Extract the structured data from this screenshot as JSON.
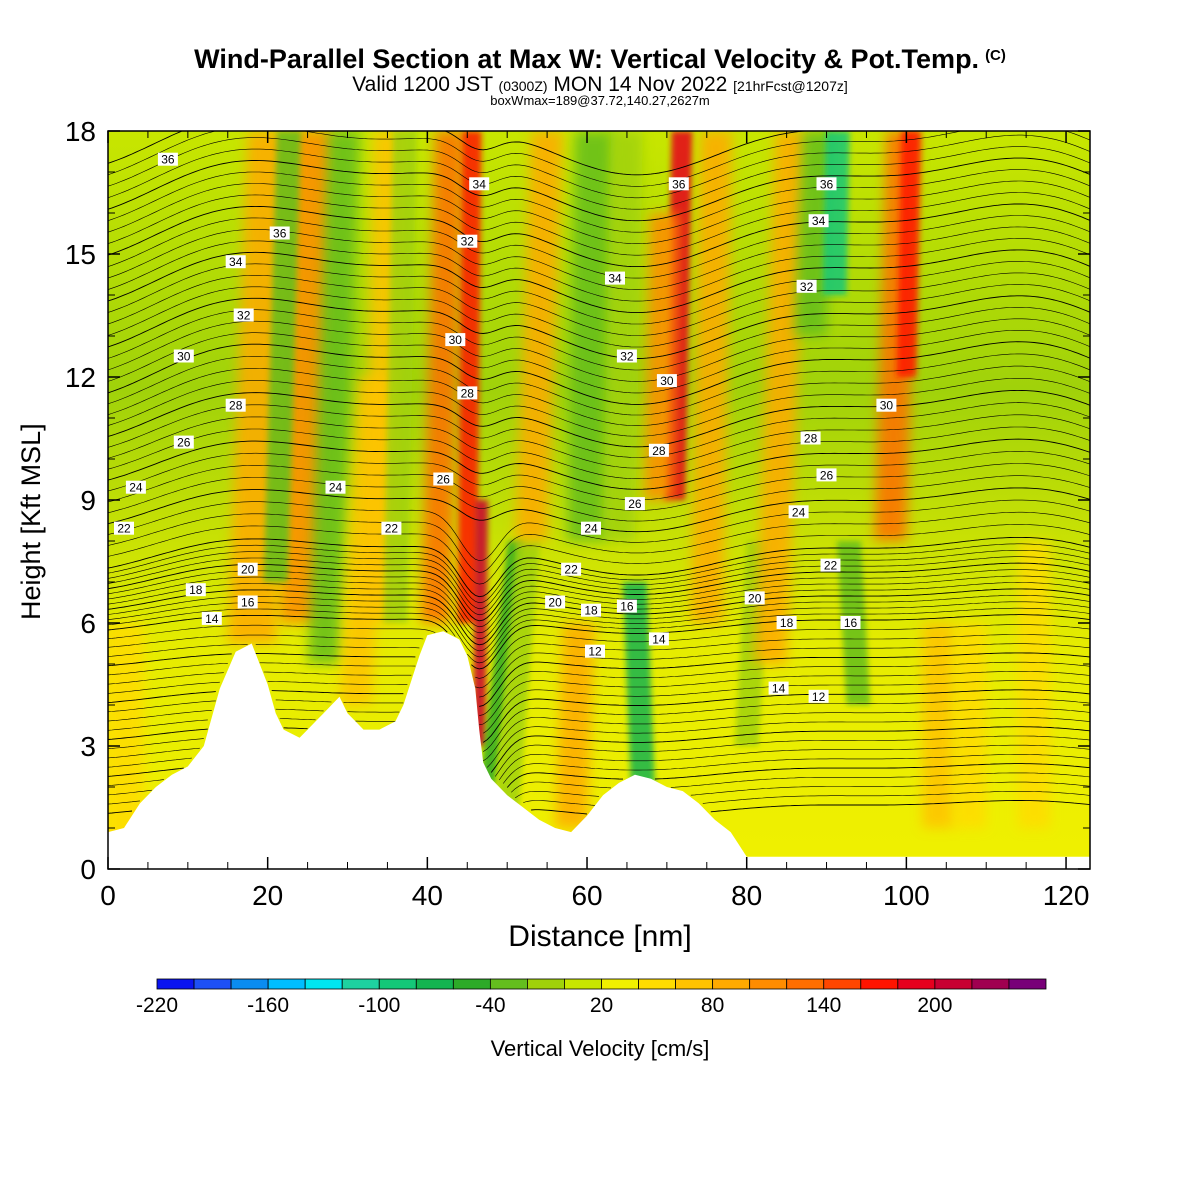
{
  "header": {
    "title": "Wind-Parallel Section at Max W: Vertical Velocity & Pot.Temp.",
    "title_tag": "(C)",
    "valid_prefix": "Valid 1200 JST",
    "valid_utc": "(0300Z)",
    "valid_date": "MON 14 Nov 2022",
    "forecast_info": "[21hrFcst@1207z]",
    "box_info": "boxWmax=189@37.72,140.27,2627m"
  },
  "chart_data": {
    "type": "heatmap",
    "title": "Wind-Parallel Section at Max W: Vertical Velocity & Pot.Temp.",
    "xlabel": "Distance [nm]",
    "ylabel": "Height [Kft MSL]",
    "xlim": [
      0,
      123
    ],
    "ylim": [
      0,
      18
    ],
    "x_ticks": [
      "0",
      "20",
      "40",
      "60",
      "80",
      "100",
      "120"
    ],
    "y_ticks": [
      "0",
      "3",
      "6",
      "9",
      "12",
      "15",
      "18"
    ],
    "colorbar": {
      "label": "Vertical Velocity [cm/s]",
      "ticks": [
        "-220",
        "-160",
        "-100",
        "-40",
        "20",
        "80",
        "140",
        "200"
      ],
      "levels": [
        -220,
        -200,
        -180,
        -160,
        -140,
        -120,
        -100,
        -80,
        -60,
        -40,
        -20,
        0,
        20,
        40,
        60,
        80,
        100,
        120,
        140,
        160,
        180,
        200,
        220,
        240
      ],
      "colors": [
        "#0a14f0",
        "#1e50f5",
        "#0a8cf0",
        "#00beff",
        "#00e6f0",
        "#1ed2a0",
        "#14c878",
        "#14b450",
        "#2daa28",
        "#64be1e",
        "#a0d20a",
        "#c8e600",
        "#f0f000",
        "#ffdc00",
        "#ffc300",
        "#ffaa00",
        "#ff8c00",
        "#ff6e00",
        "#ff4600",
        "#ff1400",
        "#e6001e",
        "#c80032",
        "#a00050",
        "#780078",
        "#500096"
      ]
    },
    "terrain_kft": [
      [
        0,
        0.9
      ],
      [
        2,
        1.0
      ],
      [
        4,
        1.6
      ],
      [
        6,
        2.0
      ],
      [
        8,
        2.3
      ],
      [
        10,
        2.5
      ],
      [
        12,
        3.0
      ],
      [
        14,
        4.4
      ],
      [
        16,
        5.3
      ],
      [
        18,
        5.5
      ],
      [
        19,
        5.0
      ],
      [
        20,
        4.5
      ],
      [
        21,
        3.8
      ],
      [
        22,
        3.4
      ],
      [
        24,
        3.2
      ],
      [
        25,
        3.4
      ],
      [
        26,
        3.6
      ],
      [
        27,
        3.8
      ],
      [
        28,
        4.0
      ],
      [
        29,
        4.2
      ],
      [
        30,
        3.8
      ],
      [
        31,
        3.6
      ],
      [
        32,
        3.4
      ],
      [
        34,
        3.4
      ],
      [
        36,
        3.6
      ],
      [
        37,
        4.0
      ],
      [
        38,
        4.6
      ],
      [
        39,
        5.2
      ],
      [
        40,
        5.7
      ],
      [
        42,
        5.8
      ],
      [
        44,
        5.6
      ],
      [
        45,
        5.2
      ],
      [
        46,
        4.4
      ],
      [
        46.5,
        3.4
      ],
      [
        47,
        2.6
      ],
      [
        48,
        2.2
      ],
      [
        50,
        1.8
      ],
      [
        52,
        1.5
      ],
      [
        54,
        1.2
      ],
      [
        56,
        1.0
      ],
      [
        58,
        0.9
      ],
      [
        60,
        1.3
      ],
      [
        62,
        1.8
      ],
      [
        64,
        2.1
      ],
      [
        66,
        2.3
      ],
      [
        68,
        2.2
      ],
      [
        70,
        2.0
      ],
      [
        72,
        1.9
      ],
      [
        74,
        1.6
      ],
      [
        76,
        1.2
      ],
      [
        78,
        0.9
      ],
      [
        79,
        0.6
      ],
      [
        80,
        0.3
      ],
      [
        90,
        0.3
      ],
      [
        100,
        0.3
      ],
      [
        110,
        0.3
      ],
      [
        123,
        0.3
      ]
    ],
    "contour_labels": [
      {
        "x": 7.5,
        "y": 17.3,
        "text": "36"
      },
      {
        "x": 21.5,
        "y": 15.5,
        "text": "36"
      },
      {
        "x": 46.5,
        "y": 16.7,
        "text": "34"
      },
      {
        "x": 71.5,
        "y": 16.7,
        "text": "36"
      },
      {
        "x": 90,
        "y": 16.7,
        "text": "36"
      },
      {
        "x": 89,
        "y": 15.8,
        "text": "34"
      },
      {
        "x": 16,
        "y": 14.8,
        "text": "34"
      },
      {
        "x": 45,
        "y": 15.3,
        "text": "32"
      },
      {
        "x": 63.5,
        "y": 14.4,
        "text": "34"
      },
      {
        "x": 87.5,
        "y": 14.2,
        "text": "32"
      },
      {
        "x": 17,
        "y": 13.5,
        "text": "32"
      },
      {
        "x": 43.5,
        "y": 12.9,
        "text": "30"
      },
      {
        "x": 9.5,
        "y": 12.5,
        "text": "30"
      },
      {
        "x": 65,
        "y": 12.5,
        "text": "32"
      },
      {
        "x": 70,
        "y": 11.9,
        "text": "30"
      },
      {
        "x": 45,
        "y": 11.6,
        "text": "28"
      },
      {
        "x": 16,
        "y": 11.3,
        "text": "28"
      },
      {
        "x": 97.5,
        "y": 11.3,
        "text": "30"
      },
      {
        "x": 9.5,
        "y": 10.4,
        "text": "26"
      },
      {
        "x": 88,
        "y": 10.5,
        "text": "28"
      },
      {
        "x": 69,
        "y": 10.2,
        "text": "28"
      },
      {
        "x": 90,
        "y": 9.6,
        "text": "26"
      },
      {
        "x": 3.5,
        "y": 9.3,
        "text": "24"
      },
      {
        "x": 28.5,
        "y": 9.3,
        "text": "24"
      },
      {
        "x": 42,
        "y": 9.5,
        "text": "26"
      },
      {
        "x": 66,
        "y": 8.9,
        "text": "26"
      },
      {
        "x": 86.5,
        "y": 8.7,
        "text": "24"
      },
      {
        "x": 2,
        "y": 8.3,
        "text": "22"
      },
      {
        "x": 35.5,
        "y": 8.3,
        "text": "22"
      },
      {
        "x": 60.5,
        "y": 8.3,
        "text": "24"
      },
      {
        "x": 90.5,
        "y": 7.4,
        "text": "22"
      },
      {
        "x": 58,
        "y": 7.3,
        "text": "22"
      },
      {
        "x": 17.5,
        "y": 7.3,
        "text": "20"
      },
      {
        "x": 11,
        "y": 6.8,
        "text": "18"
      },
      {
        "x": 81,
        "y": 6.6,
        "text": "20"
      },
      {
        "x": 17.5,
        "y": 6.5,
        "text": "16"
      },
      {
        "x": 56,
        "y": 6.5,
        "text": "20"
      },
      {
        "x": 60.5,
        "y": 6.3,
        "text": "18"
      },
      {
        "x": 65,
        "y": 6.4,
        "text": "16"
      },
      {
        "x": 13,
        "y": 6.1,
        "text": "14"
      },
      {
        "x": 85,
        "y": 6.0,
        "text": "18"
      },
      {
        "x": 93,
        "y": 6.0,
        "text": "16"
      },
      {
        "x": 69,
        "y": 5.6,
        "text": "14"
      },
      {
        "x": 61,
        "y": 5.3,
        "text": "12"
      },
      {
        "x": 84,
        "y": 4.4,
        "text": "14"
      },
      {
        "x": 89,
        "y": 4.2,
        "text": "12"
      }
    ]
  }
}
